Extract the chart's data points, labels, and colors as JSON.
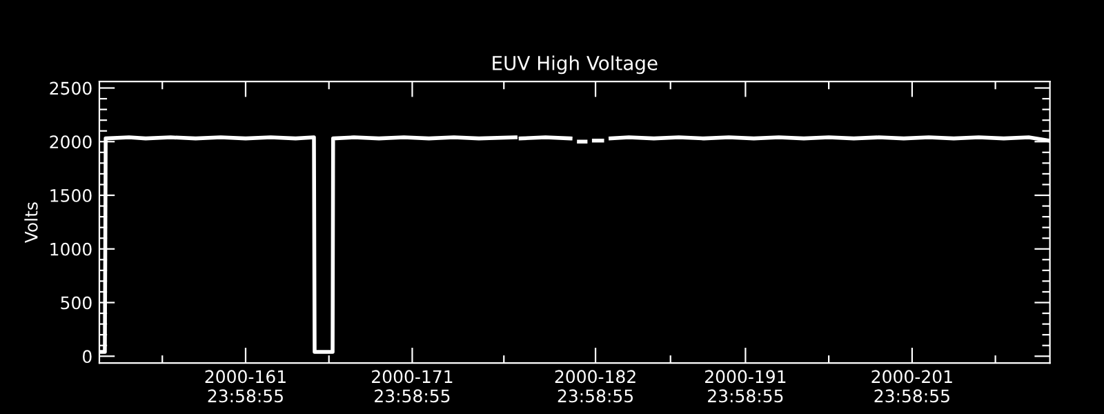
{
  "chart_data": {
    "type": "line",
    "title": "EUV High Voltage",
    "ylabel": "Volts",
    "x": [
      "2000-06-01T07:12",
      "2000-06-01T13:12",
      "2000-06-01T14:24",
      "2000-06-03T00:00",
      "2000-06-04T00:00",
      "2000-06-05T12:00",
      "2000-06-07T00:00",
      "2000-06-08T12:00",
      "2000-06-10T00:00",
      "2000-06-11T12:00",
      "2000-06-13T00:00",
      "2000-06-14T02:24",
      "2000-06-14T03:22",
      "2000-06-15T05:17",
      "2000-06-15T06:00",
      "2000-06-16T12:00",
      "2000-06-18T00:00",
      "2000-06-19T12:00",
      "2000-06-21T00:00",
      "2000-06-22T12:00",
      "2000-06-24T00:00",
      "2000-06-26T04:48",
      "2000-06-26T06:00",
      "2000-06-26T12:00",
      "2000-06-28T00:00",
      "2000-06-29T12:00",
      "2000-06-29T19:12",
      "2000-06-30T00:00",
      "2000-06-30T09:36",
      "2000-06-30T12:00",
      "2000-06-30T21:36",
      "2000-07-01T09:36",
      "2000-07-01T14:24",
      "2000-07-01T21:36",
      "2000-07-03T00:00",
      "2000-07-04T12:00",
      "2000-07-06T00:00",
      "2000-07-07T12:00",
      "2000-07-09T00:00",
      "2000-07-10T12:00",
      "2000-07-12T00:00",
      "2000-07-13T12:00",
      "2000-07-15T00:00",
      "2000-07-16T12:00",
      "2000-07-18T00:00",
      "2000-07-19T12:00",
      "2000-07-21T00:00",
      "2000-07-22T12:00",
      "2000-07-24T00:00",
      "2000-07-25T12:00",
      "2000-07-27T00:00",
      "2000-07-28T04:48"
    ],
    "series": [
      {
        "color": "#ffffff",
        "values": [
          40,
          40,
          2030,
          2040,
          2030,
          2040,
          2030,
          2040,
          2030,
          2040,
          2030,
          2040,
          40,
          40,
          2030,
          2040,
          2030,
          2040,
          2030,
          2040,
          2030,
          2040,
          null,
          2030,
          2040,
          2030,
          null,
          2000,
          2000,
          null,
          2010,
          2010,
          null,
          2030,
          2040,
          2030,
          2040,
          2030,
          2040,
          2030,
          2040,
          2030,
          2040,
          2030,
          2040,
          2030,
          2040,
          2030,
          2040,
          2030,
          2040,
          2010
        ]
      }
    ],
    "xlim": [
      "2000-06-01T05:17",
      "2000-07-28T06:29"
    ],
    "xticks": [
      {
        "value": "2000-06-04T23:58",
        "label": null
      },
      {
        "value": "2000-06-09T23:58",
        "label": "2000-161\n23:58:55"
      },
      {
        "value": "2000-06-14T23:58",
        "label": null
      },
      {
        "value": "2000-06-19T23:58",
        "label": "2000-171\n23:58:55"
      },
      {
        "value": "2000-06-25T11:58",
        "label": null
      },
      {
        "value": "2000-06-30T23:58",
        "label": "2000-182\n23:58:55"
      },
      {
        "value": "2000-07-05T11:58",
        "label": null
      },
      {
        "value": "2000-07-09T23:58",
        "label": "2000-191\n23:58:55"
      },
      {
        "value": "2000-07-14T23:58",
        "label": null
      },
      {
        "value": "2000-07-19T23:58",
        "label": "2000-201\n23:58:55"
      },
      {
        "value": "2000-07-24T23:58",
        "label": null
      }
    ],
    "ylim": [
      -64,
      2560
    ],
    "yticks": [
      0,
      {
        "value": 100,
        "label": null
      },
      {
        "value": 200,
        "label": null
      },
      {
        "value": 300,
        "label": null
      },
      {
        "value": 400,
        "label": null
      },
      500,
      {
        "value": 600,
        "label": null
      },
      {
        "value": 700,
        "label": null
      },
      {
        "value": 800,
        "label": null
      },
      {
        "value": 900,
        "label": null
      },
      1000,
      {
        "value": 1100,
        "label": null
      },
      {
        "value": 1200,
        "label": null
      },
      {
        "value": 1300,
        "label": null
      },
      {
        "value": 1400,
        "label": null
      },
      1500,
      {
        "value": 1600,
        "label": null
      },
      {
        "value": 1700,
        "label": null
      },
      {
        "value": 1800,
        "label": null
      },
      {
        "value": 1900,
        "label": null
      },
      2000,
      {
        "value": 2100,
        "label": null
      },
      {
        "value": 2200,
        "label": null
      },
      {
        "value": 2300,
        "label": null
      },
      {
        "value": 2400,
        "label": null
      },
      2500
    ],
    "grid": false,
    "legend": false,
    "marker": "none",
    "line_style": "solid"
  }
}
